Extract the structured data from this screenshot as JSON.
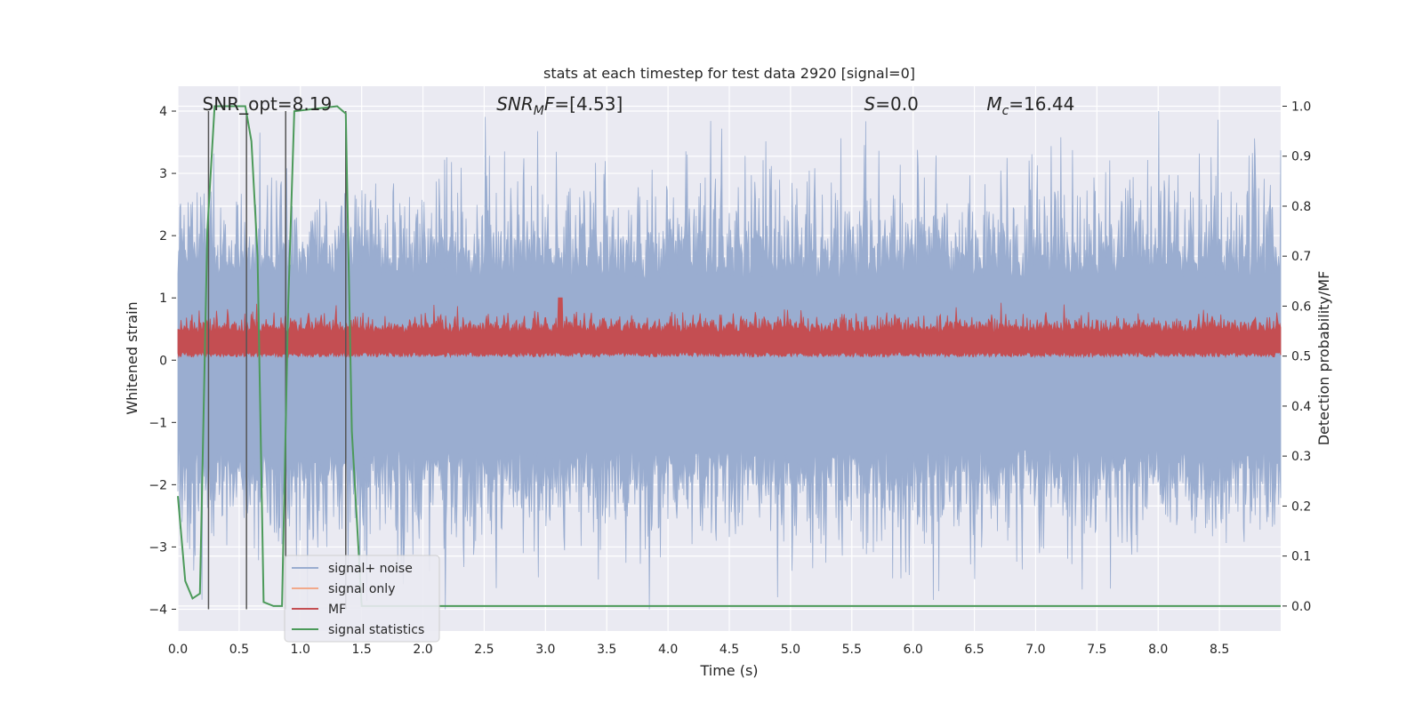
{
  "chart_data": {
    "type": "line",
    "title": "stats at each timestep for test data 2920 [signal=0]",
    "xlabel": "Time (s)",
    "ylabel_left": "Whitened strain",
    "ylabel_right": "Detection probability/MF",
    "xlim": [
      0.0,
      9.0
    ],
    "ylim_left": [
      -4.35,
      4.4
    ],
    "ylim_right": [
      -0.05,
      1.04
    ],
    "x_ticks": [
      "0.0",
      "0.5",
      "1.0",
      "1.5",
      "2.0",
      "2.5",
      "3.0",
      "3.5",
      "4.0",
      "4.5",
      "5.0",
      "5.5",
      "6.0",
      "6.5",
      "7.0",
      "7.5",
      "8.0",
      "8.5"
    ],
    "y_ticks_left": [
      "4",
      "3",
      "2",
      "1",
      "0",
      "−1",
      "−2",
      "−3",
      "−4"
    ],
    "y_ticks_right": [
      "1.0",
      "0.9",
      "0.8",
      "0.7",
      "0.6",
      "0.5",
      "0.4",
      "0.3",
      "0.2",
      "0.1",
      "0.0"
    ],
    "annotations": [
      {
        "label": "SNR_opt=8.19",
        "x": 0.2
      },
      {
        "label": "SNR",
        "sub": "M",
        "tail": "F=[4.53]",
        "x": 2.6,
        "italic": true
      },
      {
        "label": "S",
        "tail": "=0.0",
        "x": 5.6,
        "italic": true
      },
      {
        "label": "M",
        "sub": "c",
        "tail": "=16.44",
        "x": 6.6,
        "italic": true
      }
    ],
    "vertical_markers": [
      0.25,
      0.56,
      0.88,
      1.37
    ],
    "series": [
      {
        "name": "signal+ noise",
        "color": "#9aadd0",
        "axis": "left",
        "description": "whitened noise, approx ±2.5 with spikes to ±4"
      },
      {
        "name": "signal only",
        "color": "#f2a98a",
        "axis": "left",
        "values": []
      },
      {
        "name": "MF",
        "color": "#c44e52",
        "axis": "left",
        "description": "approx 0.0 to 0.8 band"
      },
      {
        "name": "signal statistics",
        "color": "#4c9a5a",
        "axis": "right",
        "x": [
          0.0,
          0.06,
          0.12,
          0.18,
          0.24,
          0.3,
          0.55,
          0.6,
          0.65,
          0.7,
          0.78,
          0.85,
          0.9,
          0.95,
          1.3,
          1.37,
          1.42,
          1.5,
          9.0
        ],
        "values": [
          0.22,
          0.05,
          0.015,
          0.025,
          0.75,
          1.0,
          1.0,
          0.93,
          0.7,
          0.008,
          0.0,
          0.0,
          0.6,
          0.99,
          1.0,
          0.985,
          0.35,
          0.0,
          0.0
        ]
      }
    ]
  }
}
